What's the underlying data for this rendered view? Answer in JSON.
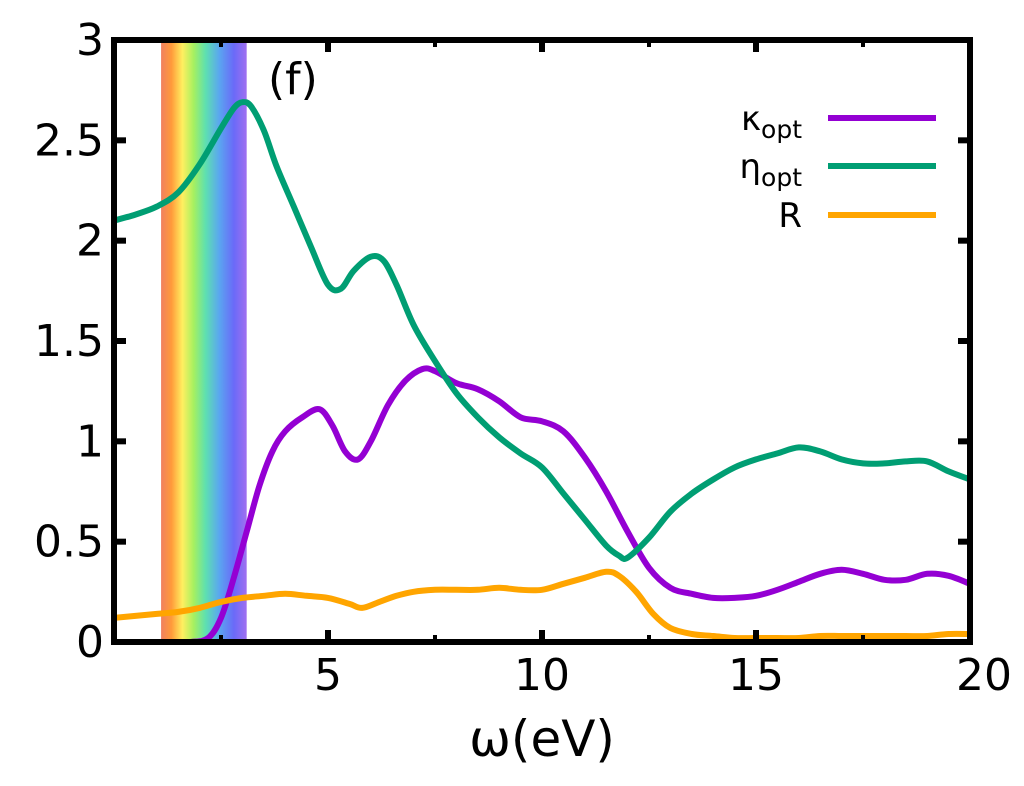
{
  "chart_data": {
    "type": "line",
    "panel_label": "(f)",
    "xlabel": "ω(eV)",
    "ylabel": "",
    "xlim": [
      0,
      20
    ],
    "ylim": [
      0,
      3
    ],
    "x_ticks": [
      5,
      10,
      15,
      20
    ],
    "x_tick_labels": [
      "5",
      "10",
      "15",
      "20"
    ],
    "y_ticks": [
      0,
      0.5,
      1,
      1.5,
      2,
      2.5,
      3
    ],
    "y_tick_labels": [
      "0",
      "0.5",
      "1",
      "1.5",
      "2",
      "2.5",
      "3"
    ],
    "grid": false,
    "legend_position": "top-right",
    "visible_band": {
      "x_start": 1.1,
      "x_end": 3.1
    },
    "series": [
      {
        "name": "κ",
        "name_subscript": "opt",
        "color": "#9400d3",
        "x": [
          1.3,
          1.8,
          2.2,
          2.5,
          2.8,
          3.1,
          3.4,
          3.7,
          4.0,
          4.4,
          4.8,
          5.1,
          5.4,
          5.7,
          6.0,
          6.4,
          6.8,
          7.2,
          7.5,
          8.0,
          8.5,
          9.0,
          9.5,
          10.0,
          10.5,
          11.0,
          11.5,
          12.0,
          12.5,
          13.0,
          13.5,
          14.0,
          14.5,
          15.0,
          15.5,
          16.0,
          16.5,
          17.0,
          17.5,
          18.0,
          18.5,
          19.0,
          19.5,
          20.0
        ],
        "y": [
          0.0,
          0.0,
          0.02,
          0.12,
          0.32,
          0.55,
          0.78,
          0.95,
          1.05,
          1.12,
          1.16,
          1.08,
          0.95,
          0.91,
          1.0,
          1.18,
          1.3,
          1.36,
          1.35,
          1.29,
          1.26,
          1.2,
          1.12,
          1.1,
          1.05,
          0.92,
          0.75,
          0.55,
          0.37,
          0.27,
          0.24,
          0.22,
          0.22,
          0.23,
          0.26,
          0.3,
          0.34,
          0.36,
          0.34,
          0.31,
          0.31,
          0.34,
          0.33,
          0.29
        ]
      },
      {
        "name": "η",
        "name_subscript": "opt",
        "color": "#009e73",
        "x": [
          0.0,
          0.5,
          1.0,
          1.5,
          2.0,
          2.5,
          2.8,
          3.0,
          3.2,
          3.5,
          3.8,
          4.2,
          4.6,
          5.0,
          5.3,
          5.6,
          6.0,
          6.3,
          6.6,
          7.0,
          7.5,
          8.0,
          8.5,
          9.0,
          9.5,
          10.0,
          10.5,
          11.0,
          11.5,
          11.8,
          12.0,
          12.5,
          13.0,
          13.5,
          14.0,
          14.5,
          15.0,
          15.5,
          16.0,
          16.5,
          17.0,
          17.5,
          18.0,
          18.5,
          19.0,
          19.5,
          20.0
        ],
        "y": [
          2.1,
          2.13,
          2.17,
          2.24,
          2.38,
          2.56,
          2.66,
          2.69,
          2.67,
          2.55,
          2.37,
          2.17,
          1.97,
          1.78,
          1.76,
          1.85,
          1.92,
          1.9,
          1.78,
          1.58,
          1.4,
          1.24,
          1.12,
          1.02,
          0.94,
          0.87,
          0.74,
          0.61,
          0.48,
          0.43,
          0.42,
          0.52,
          0.65,
          0.74,
          0.81,
          0.87,
          0.91,
          0.94,
          0.97,
          0.95,
          0.91,
          0.89,
          0.89,
          0.9,
          0.9,
          0.85,
          0.81
        ]
      },
      {
        "name": "R",
        "name_subscript": "",
        "color": "#ffa500",
        "x": [
          0.0,
          0.5,
          1.0,
          1.5,
          2.0,
          2.5,
          3.0,
          3.5,
          4.0,
          4.5,
          5.0,
          5.5,
          5.8,
          6.2,
          6.6,
          7.0,
          7.5,
          8.0,
          8.5,
          9.0,
          9.5,
          10.0,
          10.5,
          11.0,
          11.5,
          11.8,
          12.2,
          12.6,
          13.0,
          13.5,
          14.0,
          14.5,
          15.0,
          15.5,
          16.0,
          16.5,
          17.0,
          17.5,
          18.0,
          18.5,
          19.0,
          19.5,
          20.0
        ],
        "y": [
          0.12,
          0.13,
          0.14,
          0.15,
          0.17,
          0.2,
          0.22,
          0.23,
          0.24,
          0.23,
          0.22,
          0.19,
          0.17,
          0.2,
          0.23,
          0.25,
          0.26,
          0.26,
          0.26,
          0.27,
          0.26,
          0.26,
          0.29,
          0.32,
          0.35,
          0.33,
          0.25,
          0.14,
          0.07,
          0.04,
          0.03,
          0.02,
          0.02,
          0.02,
          0.02,
          0.03,
          0.03,
          0.03,
          0.03,
          0.03,
          0.03,
          0.04,
          0.04
        ]
      }
    ]
  }
}
